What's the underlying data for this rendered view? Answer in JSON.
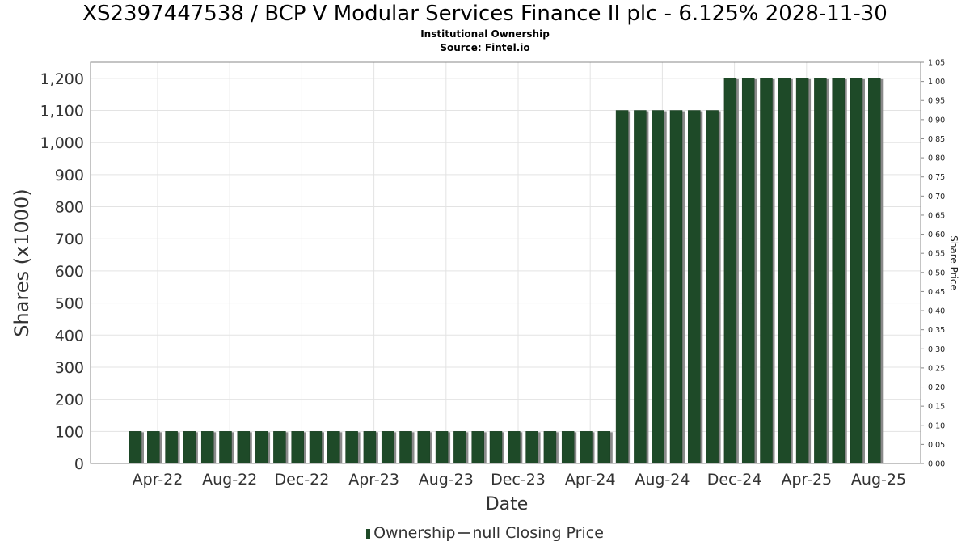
{
  "header": {
    "title": "XS2397447538 / BCP V Modular Services Finance II plc - 6.125% 2028-11-30",
    "subtitle": "Institutional Ownership",
    "source": "Source: Fintel.io"
  },
  "legend": {
    "ownership_label": "Ownership",
    "price_label": "null Closing Price"
  },
  "chart_data": {
    "type": "bar",
    "xlabel": "Date",
    "ylabel": "Shares (x1000)",
    "y2label": "Share Price",
    "ylim": [
      0,
      1250
    ],
    "y2lim": [
      0,
      1.05
    ],
    "yticks": [
      0,
      100,
      200,
      300,
      400,
      500,
      600,
      700,
      800,
      900,
      1000,
      1100,
      1200
    ],
    "yticklabels": [
      "0",
      "100",
      "200",
      "300",
      "400",
      "500",
      "600",
      "700",
      "800",
      "900",
      "1,000",
      "1,100",
      "1,200"
    ],
    "y2ticklabels": [
      "0.00",
      "0.05",
      "0.10",
      "0.15",
      "0.20",
      "0.25",
      "0.30",
      "0.35",
      "0.40",
      "0.45",
      "0.50",
      "0.55",
      "0.60",
      "0.65",
      "0.70",
      "0.75",
      "0.80",
      "0.85",
      "0.90",
      "0.95",
      "1.00",
      "1.05"
    ],
    "xticklabels": [
      "Apr-22",
      "Aug-22",
      "Dec-22",
      "Apr-23",
      "Aug-23",
      "Dec-23",
      "Apr-24",
      "Aug-24",
      "Dec-24",
      "Apr-25",
      "Aug-25"
    ],
    "grid": true,
    "legend_position": "bottom",
    "colors": {
      "bar": "#1e4a28",
      "bar_shadow": "#8a8a8a"
    },
    "series": [
      {
        "name": "Ownership",
        "values": [
          100,
          100,
          100,
          100,
          100,
          100,
          100,
          100,
          100,
          100,
          100,
          100,
          100,
          100,
          100,
          100,
          100,
          100,
          100,
          100,
          100,
          100,
          100,
          100,
          100,
          100,
          100,
          1100,
          1100,
          1100,
          1100,
          1100,
          1100,
          1200,
          1200,
          1200,
          1200,
          1200,
          1200,
          1200,
          1200,
          1200
        ]
      }
    ]
  }
}
